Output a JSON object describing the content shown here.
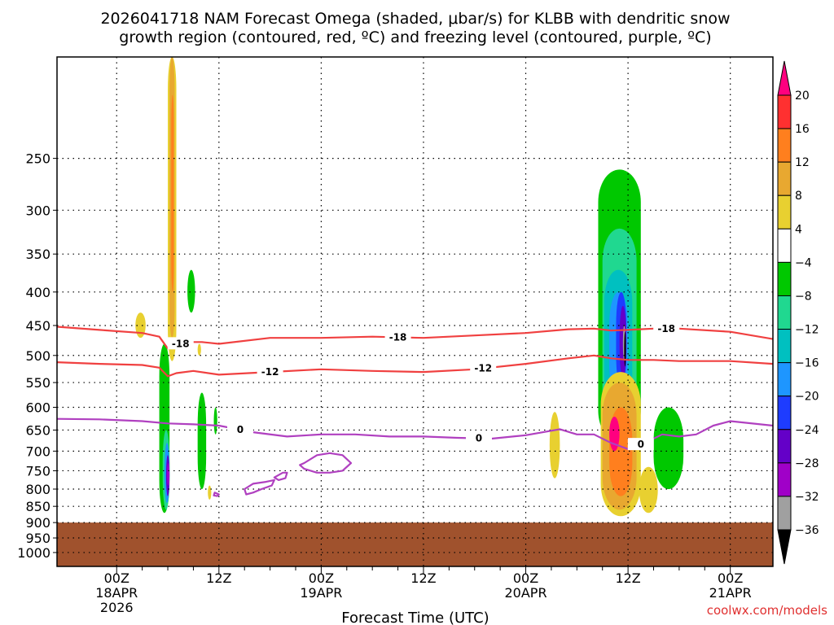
{
  "chart_data": {
    "type": "heatmap",
    "title": [
      "2026041718 NAM Forecast Omega (shaded, μbar/s) for KLBB with dendritic snow",
      "growth region (contoured, red, ºC) and freezing level (contoured, purple, ºC)"
    ],
    "xlabel": "Forecast Time (UTC)",
    "ylabel": "",
    "credit": "coolwx.com/models",
    "x_range_hours": [
      -7,
      77
    ],
    "y_range_hpa": [
      1050,
      175
    ],
    "y_ticks": [
      250,
      300,
      350,
      400,
      450,
      500,
      550,
      600,
      650,
      700,
      750,
      800,
      850,
      900,
      950,
      1000
    ],
    "x_ticks": [
      {
        "hour": 0,
        "lines": [
          "00Z",
          "18APR",
          "2026"
        ]
      },
      {
        "hour": 12,
        "lines": [
          "12Z"
        ]
      },
      {
        "hour": 24,
        "lines": [
          "00Z",
          "19APR"
        ]
      },
      {
        "hour": 36,
        "lines": [
          "12Z"
        ]
      },
      {
        "hour": 48,
        "lines": [
          "00Z",
          "20APR"
        ]
      },
      {
        "hour": 60,
        "lines": [
          "12Z"
        ]
      },
      {
        "hour": 72,
        "lines": [
          "00Z",
          "21APR"
        ]
      }
    ],
    "colorbar": {
      "labels": [
        "20",
        "16",
        "12",
        "8",
        "4",
        "−4",
        "−8",
        "−12",
        "−16",
        "−20",
        "−24",
        "−28",
        "−32",
        "−36"
      ],
      "colors": [
        "#ff007f",
        "#ff3030",
        "#ff7f1e",
        "#e8a830",
        "#e8d030",
        "#ffffff",
        "#00c800",
        "#20d890",
        "#00c0c0",
        "#1e96ff",
        "#1e3cff",
        "#6400c8",
        "#a000c8",
        "#a0a0a0",
        "#000000"
      ]
    },
    "omega_cells": [
      {
        "h0": 5.0,
        "h1": 6.2,
        "p0": 480,
        "p1": 870,
        "color": "#00c800"
      },
      {
        "h0": 5.4,
        "h1": 6.2,
        "p0": 650,
        "p1": 860,
        "color": "#20d890"
      },
      {
        "h0": 5.6,
        "h1": 6.2,
        "p0": 680,
        "p1": 840,
        "color": "#1e96ff"
      },
      {
        "h0": 5.8,
        "h1": 6.2,
        "p0": 710,
        "p1": 820,
        "color": "#6400c8"
      },
      {
        "h0": 5.9,
        "h1": 6.2,
        "p0": 730,
        "p1": 790,
        "color": "#a000c8"
      },
      {
        "h0": 6.0,
        "h1": 7.0,
        "p0": 175,
        "p1": 510,
        "color": "#e8d030"
      },
      {
        "h0": 6.2,
        "h1": 6.8,
        "p0": 175,
        "p1": 470,
        "color": "#e8a830"
      },
      {
        "h0": 6.4,
        "h1": 6.7,
        "p0": 200,
        "p1": 400,
        "color": "#ff7f1e"
      },
      {
        "h0": 2.2,
        "h1": 3.4,
        "p0": 430,
        "p1": 470,
        "color": "#e8d030"
      },
      {
        "h0": 8.3,
        "h1": 9.2,
        "p0": 370,
        "p1": 430,
        "color": "#00c800"
      },
      {
        "h0": 9.5,
        "h1": 10.5,
        "p0": 570,
        "p1": 800,
        "color": "#00c800"
      },
      {
        "h0": 11.4,
        "h1": 11.8,
        "p0": 600,
        "p1": 660,
        "color": "#00c800"
      },
      {
        "h0": 10.7,
        "h1": 11.1,
        "p0": 790,
        "p1": 830,
        "color": "#e8d030"
      },
      {
        "h0": 9.5,
        "h1": 9.9,
        "p0": 480,
        "p1": 500,
        "color": "#e8d030"
      },
      {
        "h0": 50.8,
        "h1": 52.0,
        "p0": 610,
        "p1": 770,
        "color": "#e8d030"
      },
      {
        "h0": 56.5,
        "h1": 61.5,
        "p0": 260,
        "p1": 680,
        "color": "#00c800"
      },
      {
        "h0": 57.0,
        "h1": 61.0,
        "p0": 320,
        "p1": 650,
        "color": "#20d890"
      },
      {
        "h0": 57.2,
        "h1": 60.5,
        "p0": 370,
        "p1": 600,
        "color": "#00c0c0"
      },
      {
        "h0": 57.8,
        "h1": 60.0,
        "p0": 400,
        "p1": 580,
        "color": "#1e96ff"
      },
      {
        "h0": 58.6,
        "h1": 59.8,
        "p0": 400,
        "p1": 560,
        "color": "#1e3cff"
      },
      {
        "h0": 59.0,
        "h1": 59.8,
        "p0": 420,
        "p1": 540,
        "color": "#6400c8"
      },
      {
        "h0": 59.4,
        "h1": 59.7,
        "p0": 450,
        "p1": 510,
        "color": "#a0a0a0"
      },
      {
        "h0": 59.55,
        "h1": 59.75,
        "p0": 460,
        "p1": 520,
        "color": "#000000"
      },
      {
        "h0": 63.0,
        "h1": 66.5,
        "p0": 600,
        "p1": 800,
        "color": "#00c800"
      },
      {
        "h0": 56.8,
        "h1": 61.5,
        "p0": 530,
        "p1": 880,
        "color": "#e8d030"
      },
      {
        "h0": 57.0,
        "h1": 61.0,
        "p0": 550,
        "p1": 860,
        "color": "#e8a830"
      },
      {
        "h0": 57.8,
        "h1": 60.5,
        "p0": 600,
        "p1": 820,
        "color": "#ff7f1e"
      },
      {
        "h0": 57.8,
        "h1": 59.0,
        "p0": 620,
        "p1": 700,
        "color": "#ff007f"
      },
      {
        "h0": 61.3,
        "h1": 63.5,
        "p0": 740,
        "p1": 870,
        "color": "#e8d030"
      }
    ],
    "surface": {
      "pressure_hpa": 900,
      "color": "#a0522d"
    },
    "contours": [
      {
        "name": "-18",
        "color": "#f04040",
        "label_hours": [
          7.5,
          33,
          64.5
        ],
        "x": [
          -7,
          -2,
          3,
          5,
          6,
          8,
          10,
          12,
          18,
          24,
          30,
          36,
          42,
          48,
          53,
          56,
          58,
          60,
          63,
          66,
          72,
          77
        ],
        "y": [
          452,
          457,
          462,
          468,
          488,
          477,
          477,
          480,
          470,
          470,
          468,
          470,
          466,
          462,
          456,
          455,
          458,
          457,
          455,
          455,
          460,
          472
        ]
      },
      {
        "name": "-12",
        "color": "#f04040",
        "label_hours": [
          18,
          43
        ],
        "x": [
          -7,
          -2,
          3,
          5,
          6,
          7,
          9,
          12,
          18,
          24,
          30,
          36,
          42,
          48,
          53,
          56,
          58,
          60,
          63,
          66,
          72,
          77
        ],
        "y": [
          512,
          515,
          517,
          522,
          538,
          532,
          528,
          535,
          530,
          525,
          528,
          530,
          525,
          515,
          505,
          500,
          505,
          508,
          508,
          510,
          510,
          515
        ]
      },
      {
        "name": "0",
        "color": "#b040c0",
        "label_hours": [
          14.5,
          42.5,
          61.5
        ],
        "x": [
          -7,
          -2,
          3,
          6,
          9,
          12,
          16,
          20,
          24,
          28,
          32,
          36,
          40,
          44,
          48,
          52,
          54,
          56,
          58,
          60,
          62,
          64,
          66,
          68,
          70,
          72,
          77
        ],
        "y": [
          625,
          626,
          630,
          635,
          637,
          640,
          655,
          665,
          660,
          660,
          665,
          665,
          668,
          670,
          662,
          648,
          660,
          660,
          680,
          695,
          680,
          660,
          665,
          660,
          640,
          630,
          640
        ]
      }
    ],
    "closed_contours": [
      {
        "color": "#b040c0",
        "x": [
          22,
          23.5,
          25,
          26.5,
          27.5,
          26.5,
          25,
          23.5,
          22,
          21.5,
          22
        ],
        "y": [
          730,
          710,
          705,
          710,
          730,
          750,
          755,
          755,
          745,
          735,
          730
        ]
      },
      {
        "color": "#b040c0",
        "x": [
          15,
          16,
          17.5,
          18.5,
          18.2,
          17,
          16,
          15.2,
          15
        ],
        "y": [
          800,
          785,
          780,
          775,
          790,
          800,
          810,
          815,
          800
        ]
      },
      {
        "color": "#b040c0",
        "x": [
          18.5,
          19.5,
          20,
          19.8,
          19,
          18.5
        ],
        "y": [
          768,
          755,
          755,
          770,
          775,
          768
        ]
      },
      {
        "color": "#b040c0",
        "x": [
          11.5,
          12,
          11.8,
          11.4,
          11.5
        ],
        "y": [
          810,
          815,
          820,
          818,
          810
        ]
      }
    ]
  }
}
